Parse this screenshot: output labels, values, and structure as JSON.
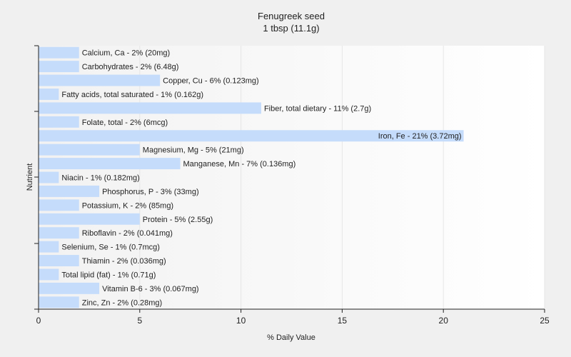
{
  "chart_data": {
    "type": "bar",
    "orientation": "horizontal",
    "title": "Fenugreek seed",
    "subtitle": "1 tbsp (11.1g)",
    "xlabel": "% Daily Value",
    "ylabel": "Nutrient",
    "xlim": [
      0,
      25
    ],
    "xticks": [
      "0",
      "5",
      "10",
      "15",
      "20",
      "25"
    ],
    "grid": true,
    "bar_color": "#c5dcfb",
    "categories": [
      "Calcium, Ca",
      "Carbohydrates",
      "Copper, Cu",
      "Fatty acids, total saturated",
      "Fiber, total dietary",
      "Folate, total",
      "Iron, Fe",
      "Magnesium, Mg",
      "Manganese, Mn",
      "Niacin",
      "Phosphorus, P",
      "Potassium, K",
      "Protein",
      "Riboflavin",
      "Selenium, Se",
      "Thiamin",
      "Total lipid (fat)",
      "Vitamin B-6",
      "Zinc, Zn"
    ],
    "values": [
      2,
      2,
      6,
      1,
      11,
      2,
      21,
      5,
      7,
      1,
      3,
      2,
      5,
      2,
      1,
      2,
      1,
      3,
      2
    ],
    "labels": [
      "Calcium, Ca - 2% (20mg)",
      "Carbohydrates - 2% (6.48g)",
      "Copper, Cu - 6% (0.123mg)",
      "Fatty acids, total saturated - 1% (0.162g)",
      "Fiber, total dietary - 11% (2.7g)",
      "Folate, total - 2% (6mcg)",
      "Iron, Fe - 21% (3.72mg)",
      "Magnesium, Mg - 5% (21mg)",
      "Manganese, Mn - 7% (0.136mg)",
      "Niacin - 1% (0.182mg)",
      "Phosphorus, P - 3% (33mg)",
      "Potassium, K - 2% (85mg)",
      "Protein - 5% (2.55g)",
      "Riboflavin - 2% (0.041mg)",
      "Selenium, Se - 1% (0.7mcg)",
      "Thiamin - 2% (0.036mg)",
      "Total lipid (fat) - 1% (0.71g)",
      "Vitamin B-6 - 3% (0.067mg)",
      "Zinc, Zn - 2% (0.28mg)"
    ]
  }
}
